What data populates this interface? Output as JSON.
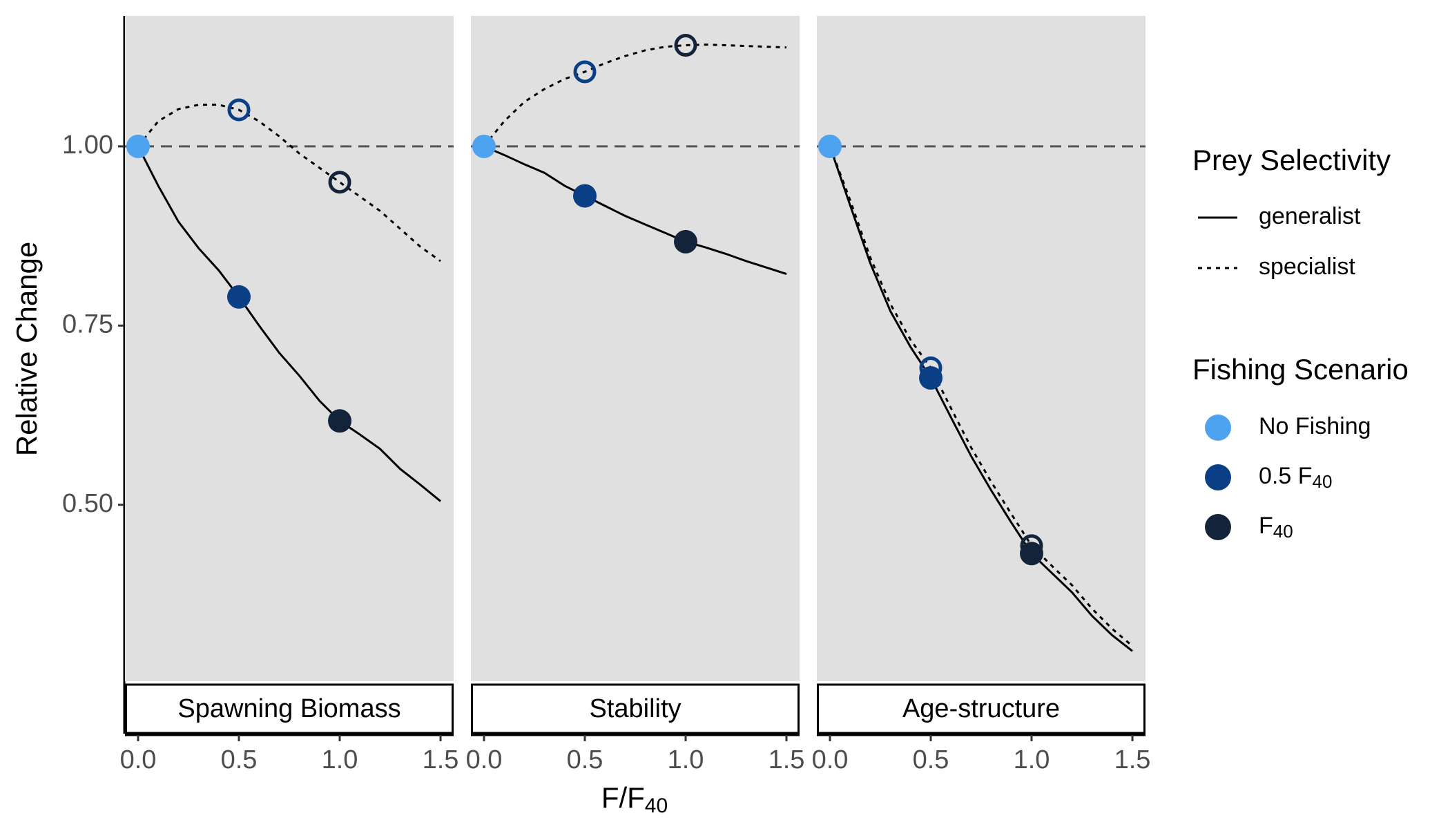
{
  "chart_data": {
    "type": "line",
    "ylabel": "Relative Change",
    "xlabel": [
      "F/F",
      "40"
    ],
    "ylim": [
      0.254,
      1.182
    ],
    "yticks": [
      {
        "value": 0.5,
        "label": "0.50"
      },
      {
        "value": 0.75,
        "label": "0.75"
      },
      {
        "value": 1,
        "label": "1.00"
      }
    ],
    "xlim": [
      -0.065,
      1.565
    ],
    "xticks": [
      {
        "value": 0,
        "label": "0.0"
      },
      {
        "value": 0.5,
        "label": "0.5"
      },
      {
        "value": 1,
        "label": "1.0"
      },
      {
        "value": 1.5,
        "label": "1.5"
      }
    ],
    "hline": 1,
    "line_color": "#000000",
    "panel_color": "#e0e0e0",
    "series_title": "Prey Selectivity",
    "series": [
      {
        "name": "generalist",
        "dash": "solid",
        "marker": "filled"
      },
      {
        "name": "specialist",
        "dash": "dotted",
        "marker": "open"
      }
    ],
    "scenario_title": "Fishing Scenario",
    "scenarios": [
      {
        "name": [
          "No Fishing"
        ],
        "x": 0,
        "color": "#4ea3f0"
      },
      {
        "name": [
          "0.5 F",
          "40"
        ],
        "x": 0.5,
        "color": "#0b3f85"
      },
      {
        "name": [
          "F",
          "40"
        ],
        "x": 1,
        "color": "#13243a"
      }
    ],
    "panels": [
      {
        "title": "Spawning Biomass",
        "x": [
          0,
          0.1,
          0.2,
          0.3,
          0.4,
          0.5,
          0.6,
          0.7,
          0.8,
          0.9,
          1.0,
          1.1,
          1.2,
          1.3,
          1.4,
          1.5
        ],
        "values": [
          [
            1.0,
            0.945,
            0.895,
            0.858,
            0.827,
            0.79,
            0.75,
            0.712,
            0.68,
            0.645,
            0.617,
            0.598,
            0.578,
            0.55,
            0.528,
            0.505
          ],
          [
            1.0,
            1.035,
            1.052,
            1.058,
            1.058,
            1.051,
            1.035,
            1.014,
            0.99,
            0.97,
            0.95,
            0.93,
            0.91,
            0.885,
            0.86,
            0.84
          ]
        ]
      },
      {
        "title": "Stability",
        "x": [
          0,
          0.1,
          0.2,
          0.3,
          0.4,
          0.5,
          0.6,
          0.7,
          0.8,
          0.9,
          1.0,
          1.1,
          1.2,
          1.3,
          1.4,
          1.5
        ],
        "values": [
          [
            1.0,
            0.988,
            0.975,
            0.963,
            0.945,
            0.931,
            0.917,
            0.903,
            0.891,
            0.879,
            0.867,
            0.859,
            0.85,
            0.84,
            0.831,
            0.822
          ],
          [
            1.0,
            1.035,
            1.062,
            1.08,
            1.094,
            1.104,
            1.116,
            1.126,
            1.134,
            1.139,
            1.141,
            1.142,
            1.141,
            1.14,
            1.139,
            1.138
          ]
        ]
      },
      {
        "title": "Age-structure",
        "x": [
          0,
          0.1,
          0.2,
          0.3,
          0.4,
          0.5,
          0.6,
          0.7,
          0.8,
          0.9,
          1.0,
          1.1,
          1.2,
          1.3,
          1.4,
          1.5
        ],
        "values": [
          [
            1.0,
            0.918,
            0.837,
            0.77,
            0.72,
            0.677,
            0.622,
            0.568,
            0.52,
            0.475,
            0.432,
            0.405,
            0.378,
            0.345,
            0.318,
            0.296
          ],
          [
            1.0,
            0.925,
            0.845,
            0.78,
            0.73,
            0.691,
            0.635,
            0.58,
            0.532,
            0.487,
            0.443,
            0.415,
            0.388,
            0.355,
            0.327,
            0.303
          ]
        ]
      }
    ]
  }
}
